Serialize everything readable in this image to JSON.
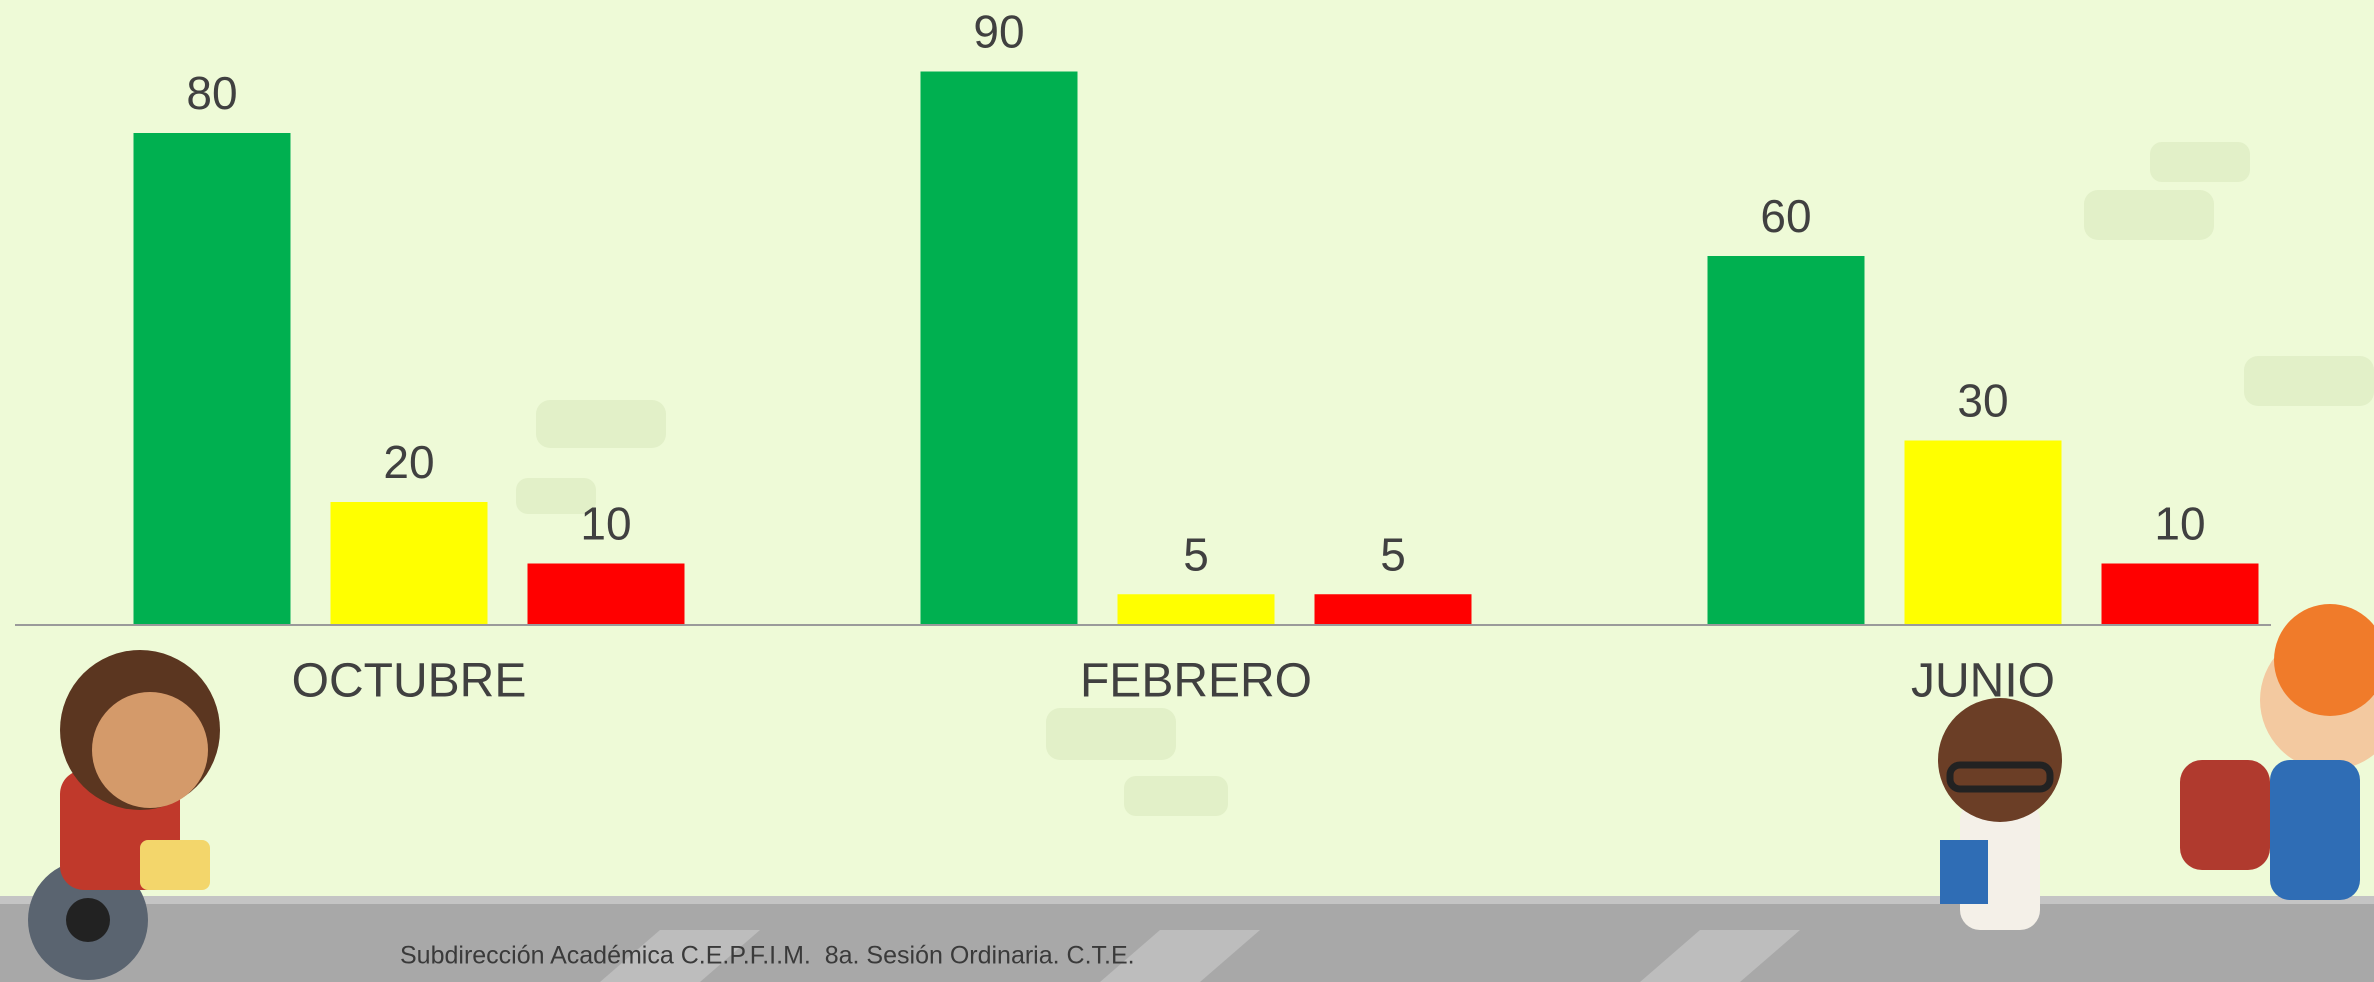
{
  "chart_data": {
    "type": "bar",
    "categories": [
      "OCTUBRE",
      "FEBRERO",
      "JUNIO"
    ],
    "series": [
      {
        "color": "#00b050",
        "values": [
          80,
          90,
          60
        ]
      },
      {
        "color": "#ffff00",
        "values": [
          20,
          5,
          30
        ]
      },
      {
        "color": "#ff0000",
        "values": [
          10,
          5,
          10
        ]
      }
    ],
    "ylim": [
      0,
      100
    ]
  },
  "footer": "Subdirección Académica C.E.P.F.I.M.  8a. Sesión Ordinaria. C.T.E."
}
